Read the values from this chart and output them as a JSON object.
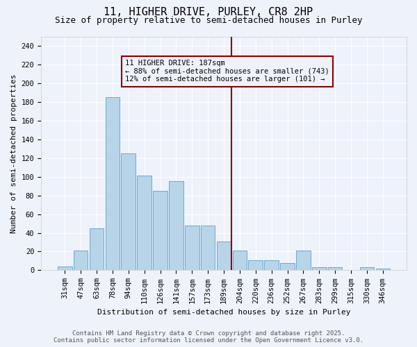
{
  "title": "11, HIGHER DRIVE, PURLEY, CR8 2HP",
  "subtitle": "Size of property relative to semi-detached houses in Purley",
  "xlabel": "Distribution of semi-detached houses by size in Purley",
  "ylabel": "Number of semi-detached properties",
  "categories": [
    "31sqm",
    "47sqm",
    "63sqm",
    "78sqm",
    "94sqm",
    "110sqm",
    "126sqm",
    "141sqm",
    "157sqm",
    "173sqm",
    "189sqm",
    "204sqm",
    "220sqm",
    "236sqm",
    "252sqm",
    "267sqm",
    "283sqm",
    "299sqm",
    "315sqm",
    "330sqm",
    "346sqm"
  ],
  "values": [
    4,
    21,
    45,
    185,
    125,
    101,
    85,
    95,
    48,
    48,
    31,
    21,
    11,
    11,
    8,
    21,
    3,
    3,
    0,
    3,
    2
  ],
  "bar_color": "#b8d4e8",
  "bar_edge_color": "#6aaad4",
  "vline_index": 10,
  "vline_color": "#8b0000",
  "annotation_text": "11 HIGHER DRIVE: 187sqm\n← 88% of semi-detached houses are smaller (743)\n12% of semi-detached houses are larger (101) →",
  "ylim": [
    0,
    250
  ],
  "yticks": [
    0,
    20,
    40,
    60,
    80,
    100,
    120,
    140,
    160,
    180,
    200,
    220,
    240
  ],
  "footer_line1": "Contains HM Land Registry data © Crown copyright and database right 2025.",
  "footer_line2": "Contains public sector information licensed under the Open Government Licence v3.0.",
  "bg_color": "#eef2fb",
  "grid_color": "#ffffff",
  "title_fontsize": 11,
  "subtitle_fontsize": 9,
  "axis_label_fontsize": 8,
  "tick_fontsize": 7.5,
  "footer_fontsize": 6.5,
  "annotation_fontsize": 7.5
}
